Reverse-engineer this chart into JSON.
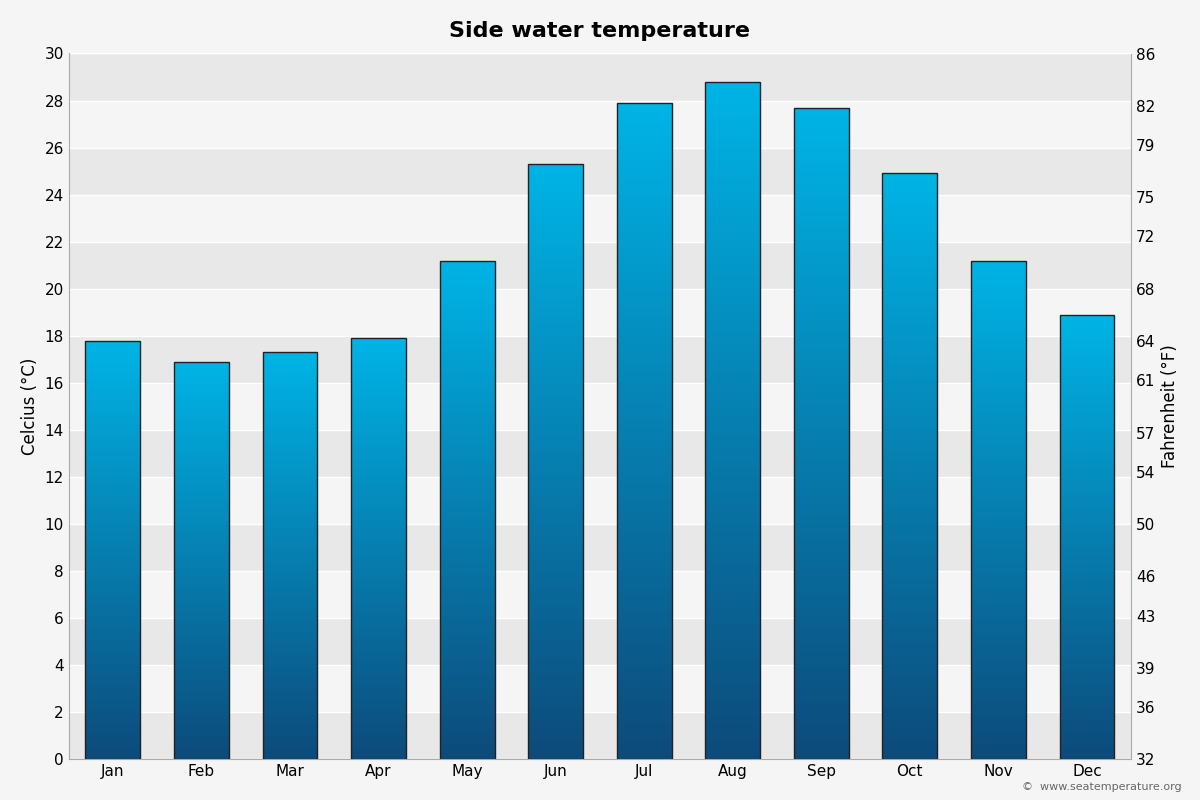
{
  "title": "Side water temperature",
  "months": [
    "Jan",
    "Feb",
    "Mar",
    "Apr",
    "May",
    "Jun",
    "Jul",
    "Aug",
    "Sep",
    "Oct",
    "Nov",
    "Dec"
  ],
  "temps_c": [
    17.8,
    16.9,
    17.3,
    17.9,
    21.2,
    25.3,
    27.9,
    28.8,
    27.7,
    24.9,
    21.2,
    18.9
  ],
  "ylim_c": [
    0,
    30
  ],
  "ylim_f": [
    32,
    86
  ],
  "yticks_c": [
    0,
    2,
    4,
    6,
    8,
    10,
    12,
    14,
    16,
    18,
    20,
    22,
    24,
    26,
    28,
    30
  ],
  "yticks_f": [
    32,
    36,
    39,
    43,
    46,
    50,
    54,
    57,
    61,
    64,
    68,
    72,
    75,
    79,
    82,
    86
  ],
  "ylabel_left": "Celcius (°C)",
  "ylabel_right": "Fahrenheit (°F)",
  "color_bottom": "#0c4a7a",
  "color_top": "#00b4e6",
  "bar_edge_color": "#222222",
  "background_color": "#f5f5f5",
  "band_color_dark": "#e8e8e8",
  "band_color_light": "#f5f5f5",
  "watermark": "©  www.seatemperature.org",
  "title_fontsize": 16,
  "label_fontsize": 12,
  "tick_fontsize": 11,
  "bar_width": 0.62
}
